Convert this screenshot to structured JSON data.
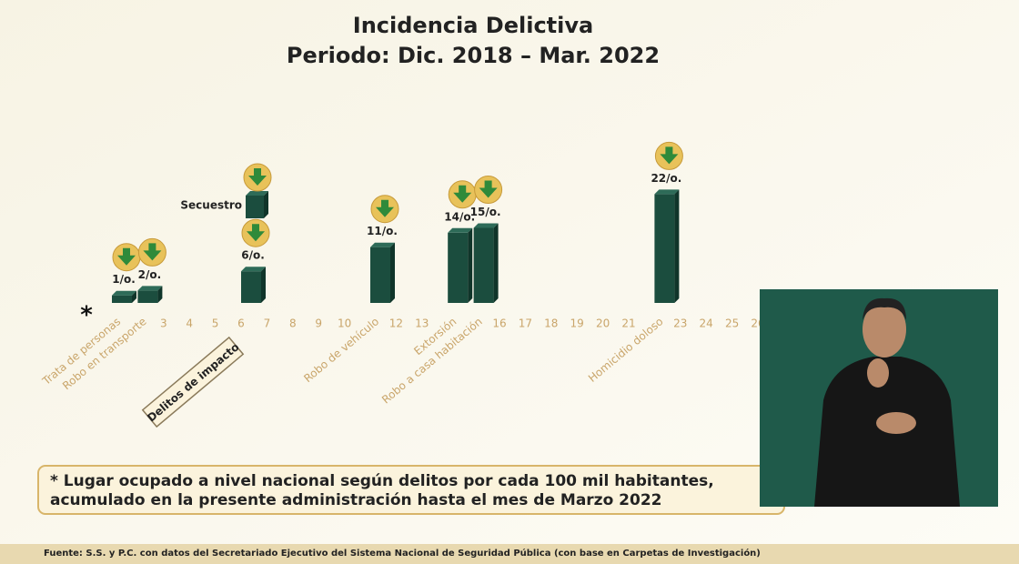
{
  "chart_data": {
    "type": "bar",
    "title": "Incidencia Delictiva",
    "subtitle": "Periodo: Dic. 2018 – Mar. 2022",
    "categories": [
      "Trata de personas",
      "Robo en transporte",
      "3",
      "4",
      "5",
      "6",
      "7",
      "8",
      "9",
      "10",
      "Robo de vehículo",
      "12",
      "13",
      "Extorsión",
      "Robo a casa habitación",
      "16",
      "17",
      "18",
      "19",
      "20",
      "21",
      "Homicidio doloso",
      "23",
      "24",
      "25",
      "26"
    ],
    "values": [
      1,
      2,
      null,
      null,
      null,
      6,
      null,
      null,
      null,
      null,
      11,
      null,
      null,
      14,
      15,
      null,
      null,
      null,
      null,
      null,
      null,
      22,
      null,
      null,
      null,
      null
    ],
    "value_labels": [
      "1/o.",
      "2/o.",
      null,
      null,
      null,
      "6/o.",
      null,
      null,
      null,
      null,
      "11/o.",
      null,
      null,
      "14/o.",
      "15/o.",
      null,
      null,
      null,
      null,
      null,
      null,
      "22/o.",
      null,
      null,
      null,
      null
    ],
    "color": "#1b4d3e",
    "marker": "*",
    "group_label": "Delitos de impacto",
    "annotation": "Secuestro"
  },
  "footnote": [
    "* Lugar ocupado a nivel nacional según delitos por cada 100 mil habitantes,",
    "acumulado en la presente administración hasta el mes de Marzo 2022"
  ],
  "source": "Fuente: S.S. y P.C. con datos del Secretariado Ejecutivo del Sistema Nacional de Seguridad Pública (con base en Carpetas de Investigación)"
}
